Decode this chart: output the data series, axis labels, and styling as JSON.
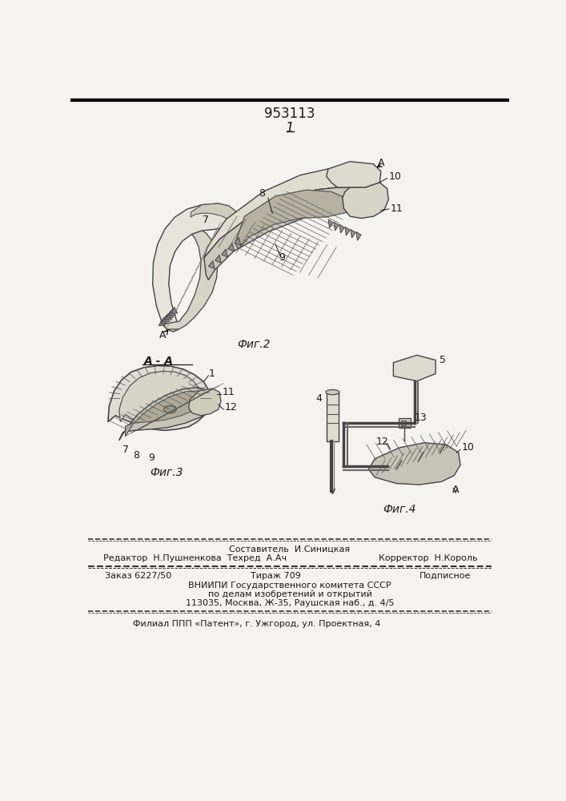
{
  "patent_number": "953113",
  "page_number": "1",
  "background_color": "#f5f3ef",
  "text_color": "#1a1a1a",
  "fig2_caption": "Фиг.2",
  "fig3_caption": "Фиг.3",
  "fig4_caption": "Фиг.4",
  "section_label": "A - A",
  "footer_line1": "Составитель  И.Синицкая",
  "footer_line2_left": "Редактор  Н.Пушненкова  Техред  А.Ач",
  "footer_line2_right": "Корректор  Н.Король",
  "footer_line3_left": "Заказ 6227/50",
  "footer_line3_mid": "Тираж 709",
  "footer_line3_right": "Подписное",
  "footer_line4": "ВНИИПИ Государственного комитета СССР",
  "footer_line5": "по делам изобретений и открытий",
  "footer_line6": "113035, Москва, Ж-35, Раушская наб., д. 4/5",
  "footer_line7": "Филиал ППП «Патент», г. Ужгород, ул. Проектная, 4"
}
